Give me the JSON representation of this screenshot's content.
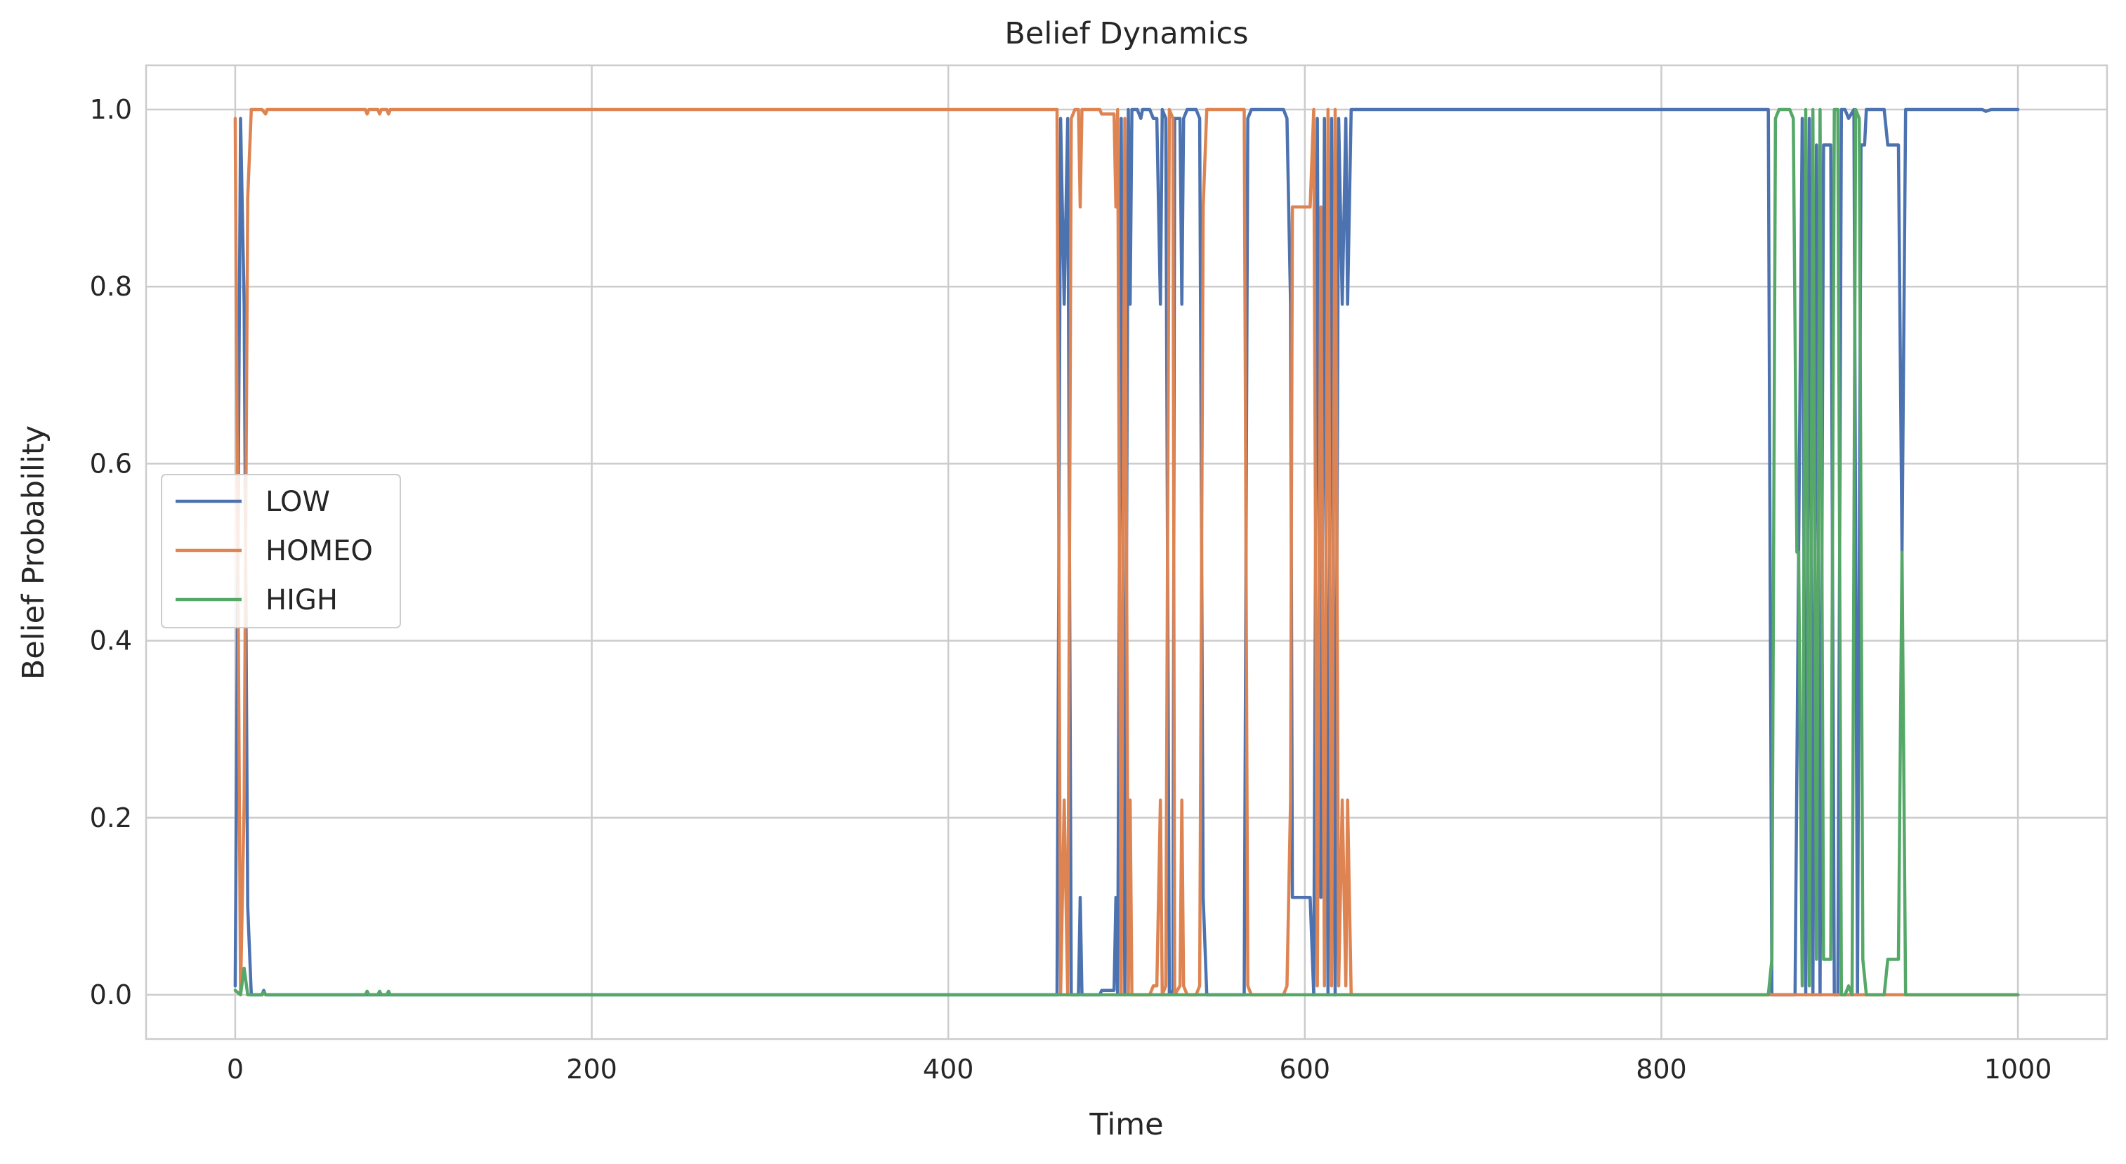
{
  "chart_data": {
    "type": "line",
    "title": "Belief Dynamics",
    "xlabel": "Time",
    "ylabel": "Belief Probability",
    "xlim": [
      -50,
      1050
    ],
    "ylim": [
      -0.05,
      1.05
    ],
    "xticks": [
      0,
      200,
      400,
      600,
      800,
      1000
    ],
    "xtick_labels": [
      "0",
      "200",
      "400",
      "600",
      "800",
      "1000"
    ],
    "yticks": [
      0.0,
      0.2,
      0.4,
      0.6,
      0.8,
      1.0
    ],
    "ytick_labels": [
      "0.0",
      "0.2",
      "0.4",
      "0.6",
      "0.8",
      "1.0"
    ],
    "grid": true,
    "legend_position": "center-left",
    "series": [
      {
        "name": "LOW",
        "color": "#4c72b0",
        "points": [
          [
            0,
            0.01
          ],
          [
            3,
            0.99
          ],
          [
            5,
            0.78
          ],
          [
            7,
            0.1
          ],
          [
            9,
            0.0
          ],
          [
            15,
            0.0
          ],
          [
            16,
            0.005
          ],
          [
            17,
            0.0
          ],
          [
            461,
            0.0
          ],
          [
            463,
            0.99
          ],
          [
            465,
            0.78
          ],
          [
            467,
            0.99
          ],
          [
            469,
            0.0
          ],
          [
            473,
            0.0
          ],
          [
            474,
            0.11
          ],
          [
            475,
            0.0
          ],
          [
            485,
            0.0
          ],
          [
            486,
            0.005
          ],
          [
            493,
            0.005
          ],
          [
            494,
            0.11
          ],
          [
            495,
            0.0
          ],
          [
            497,
            0.99
          ],
          [
            499,
            0.0
          ],
          [
            501,
            1.0
          ],
          [
            502,
            0.78
          ],
          [
            503,
            1.0
          ],
          [
            506,
            1.0
          ],
          [
            508,
            0.99
          ],
          [
            509,
            1.0
          ],
          [
            513,
            1.0
          ],
          [
            515,
            0.99
          ],
          [
            517,
            0.99
          ],
          [
            519,
            0.78
          ],
          [
            520,
            1.0
          ],
          [
            522,
            0.99
          ],
          [
            524,
            0.0
          ],
          [
            526,
            0.005
          ],
          [
            527,
            0.99
          ],
          [
            530,
            0.99
          ],
          [
            531,
            0.78
          ],
          [
            532,
            0.99
          ],
          [
            534,
            1.0
          ],
          [
            539,
            1.0
          ],
          [
            541,
            0.99
          ],
          [
            543,
            0.11
          ],
          [
            545,
            0.0
          ],
          [
            566,
            0.0
          ],
          [
            568,
            0.99
          ],
          [
            570,
            1.0
          ],
          [
            588,
            1.0
          ],
          [
            590,
            0.99
          ],
          [
            592,
            0.78
          ],
          [
            593,
            0.11
          ],
          [
            603,
            0.11
          ],
          [
            605,
            0.0
          ],
          [
            607,
            0.99
          ],
          [
            609,
            0.11
          ],
          [
            611,
            0.99
          ],
          [
            613,
            0.0
          ],
          [
            615,
            0.99
          ],
          [
            617,
            0.0
          ],
          [
            619,
            0.99
          ],
          [
            621,
            0.78
          ],
          [
            623,
            0.99
          ],
          [
            624,
            0.78
          ],
          [
            626,
            1.0
          ],
          [
            855,
            1.0
          ],
          [
            860,
            1.0
          ],
          [
            862,
            0.0
          ],
          [
            875,
            0.0
          ],
          [
            877,
            0.5
          ],
          [
            879,
            0.99
          ],
          [
            881,
            0.0
          ],
          [
            883,
            0.99
          ],
          [
            885,
            0.0
          ],
          [
            887,
            0.96
          ],
          [
            889,
            0.0
          ],
          [
            891,
            0.96
          ],
          [
            895,
            0.96
          ],
          [
            897,
            0.0
          ],
          [
            899,
            0.0
          ],
          [
            901,
            1.0
          ],
          [
            903,
            1.0
          ],
          [
            905,
            0.99
          ],
          [
            908,
            1.0
          ],
          [
            910,
            0.0
          ],
          [
            912,
            0.96
          ],
          [
            914,
            0.96
          ],
          [
            915,
            1.0
          ],
          [
            925,
            1.0
          ],
          [
            927,
            0.96
          ],
          [
            933,
            0.96
          ],
          [
            935,
            0.5
          ],
          [
            937,
            1.0
          ],
          [
            980,
            1.0
          ],
          [
            982,
            0.998
          ],
          [
            985,
            1.0
          ],
          [
            1000,
            1.0
          ]
        ]
      },
      {
        "name": "HOMEO",
        "color": "#dd8452",
        "points": [
          [
            0,
            0.99
          ],
          [
            3,
            0.0
          ],
          [
            5,
            0.22
          ],
          [
            7,
            0.9
          ],
          [
            9,
            1.0
          ],
          [
            15,
            1.0
          ],
          [
            17,
            0.995
          ],
          [
            18,
            1.0
          ],
          [
            73,
            1.0
          ],
          [
            74,
            0.995
          ],
          [
            75,
            1.0
          ],
          [
            80,
            1.0
          ],
          [
            81,
            0.995
          ],
          [
            82,
            1.0
          ],
          [
            85,
            1.0
          ],
          [
            86,
            0.995
          ],
          [
            87,
            1.0
          ],
          [
            461,
            1.0
          ],
          [
            463,
            0.0
          ],
          [
            465,
            0.22
          ],
          [
            467,
            0.0
          ],
          [
            469,
            0.99
          ],
          [
            471,
            1.0
          ],
          [
            473,
            1.0
          ],
          [
            474,
            0.89
          ],
          [
            475,
            1.0
          ],
          [
            485,
            1.0
          ],
          [
            486,
            0.995
          ],
          [
            493,
            0.995
          ],
          [
            494,
            0.89
          ],
          [
            495,
            1.0
          ],
          [
            497,
            0.0
          ],
          [
            499,
            0.99
          ],
          [
            501,
            0.0
          ],
          [
            502,
            0.22
          ],
          [
            503,
            0.0
          ],
          [
            513,
            0.0
          ],
          [
            515,
            0.01
          ],
          [
            517,
            0.01
          ],
          [
            519,
            0.22
          ],
          [
            520,
            0.0
          ],
          [
            522,
            0.01
          ],
          [
            524,
            1.0
          ],
          [
            526,
            0.99
          ],
          [
            527,
            0.0
          ],
          [
            530,
            0.01
          ],
          [
            531,
            0.22
          ],
          [
            532,
            0.01
          ],
          [
            534,
            0.0
          ],
          [
            539,
            0.0
          ],
          [
            541,
            0.01
          ],
          [
            543,
            0.89
          ],
          [
            545,
            1.0
          ],
          [
            566,
            1.0
          ],
          [
            568,
            0.01
          ],
          [
            570,
            0.0
          ],
          [
            588,
            0.0
          ],
          [
            590,
            0.01
          ],
          [
            592,
            0.22
          ],
          [
            593,
            0.89
          ],
          [
            603,
            0.89
          ],
          [
            605,
            1.0
          ],
          [
            607,
            0.01
          ],
          [
            609,
            0.89
          ],
          [
            611,
            0.01
          ],
          [
            613,
            1.0
          ],
          [
            615,
            0.01
          ],
          [
            617,
            1.0
          ],
          [
            619,
            0.01
          ],
          [
            621,
            0.22
          ],
          [
            623,
            0.01
          ],
          [
            624,
            0.22
          ],
          [
            626,
            0.0
          ],
          [
            860,
            0.0
          ],
          [
            862,
            0.0
          ],
          [
            900,
            0.0
          ],
          [
            905,
            0.0
          ],
          [
            1000,
            0.0
          ]
        ]
      },
      {
        "name": "HIGH",
        "color": "#55a868",
        "points": [
          [
            0,
            0.005
          ],
          [
            3,
            0.0
          ],
          [
            5,
            0.03
          ],
          [
            7,
            0.0
          ],
          [
            15,
            0.0
          ],
          [
            16,
            0.003
          ],
          [
            17,
            0.0
          ],
          [
            73,
            0.0
          ],
          [
            74,
            0.004
          ],
          [
            75,
            0.0
          ],
          [
            80,
            0.0
          ],
          [
            81,
            0.004
          ],
          [
            82,
            0.0
          ],
          [
            85,
            0.0
          ],
          [
            86,
            0.004
          ],
          [
            87,
            0.0
          ],
          [
            860,
            0.0
          ],
          [
            862,
            0.04
          ],
          [
            864,
            0.99
          ],
          [
            866,
            1.0
          ],
          [
            872,
            1.0
          ],
          [
            874,
            0.99
          ],
          [
            876,
            0.5
          ],
          [
            877,
            0.5
          ],
          [
            879,
            0.01
          ],
          [
            881,
            1.0
          ],
          [
            883,
            0.01
          ],
          [
            885,
            1.0
          ],
          [
            887,
            0.04
          ],
          [
            889,
            1.0
          ],
          [
            891,
            0.04
          ],
          [
            895,
            0.04
          ],
          [
            897,
            1.0
          ],
          [
            899,
            1.0
          ],
          [
            901,
            0.0
          ],
          [
            903,
            0.0
          ],
          [
            905,
            0.01
          ],
          [
            907,
            0.0
          ],
          [
            909,
            1.0
          ],
          [
            911,
            0.99
          ],
          [
            913,
            0.04
          ],
          [
            915,
            0.0
          ],
          [
            925,
            0.0
          ],
          [
            927,
            0.04
          ],
          [
            933,
            0.04
          ],
          [
            935,
            0.5
          ],
          [
            937,
            0.0
          ],
          [
            1000,
            0.0
          ]
        ]
      }
    ]
  }
}
